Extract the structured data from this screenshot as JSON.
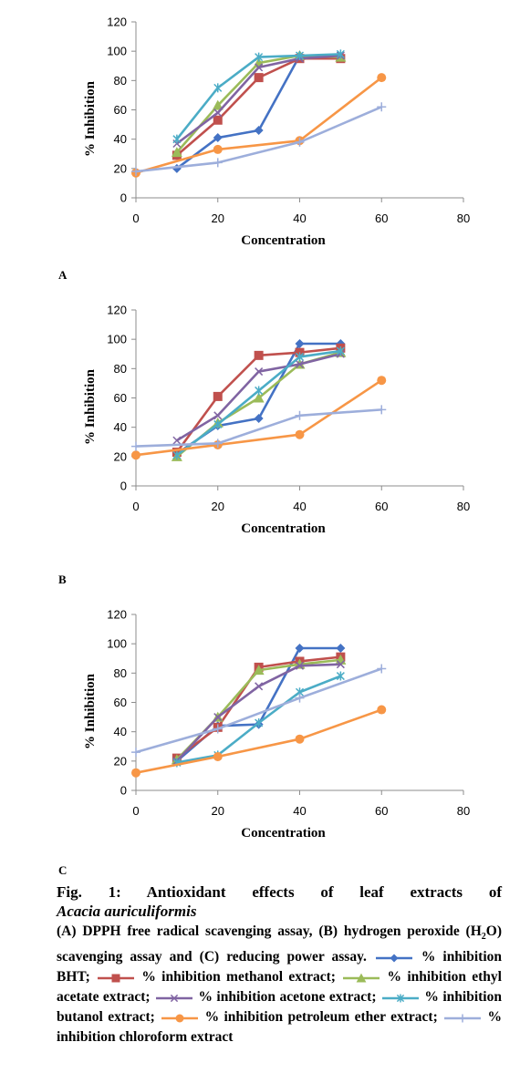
{
  "panel_letters": [
    "A",
    "B",
    "C"
  ],
  "caption": {
    "fig_label": "Fig. 1:",
    "title": "Antioxidant effects of leaf extracts of",
    "species": "Acacia auriculiformis",
    "assays": {
      "a": "(A) DPPH free radical scavenging assay,",
      "b": "(B) hydrogen peroxide (H",
      "sub": "2",
      "b_end": "O",
      "b_end2": ") scavenging assay and",
      "c": "(C) reducing power assay."
    },
    "legend_items": [
      {
        "label": "% inhibition BHT;",
        "color": "#4472C4",
        "marker": "diamond"
      },
      {
        "label": "% inhibition methanol extract;",
        "color": "#C0504D",
        "marker": "square"
      },
      {
        "label": "% inhibition ethyl acetate extract;",
        "color": "#9BBB59",
        "marker": "triangle"
      },
      {
        "label": "% inhibition acetone extract;",
        "color": "#8064A2",
        "marker": "x"
      },
      {
        "label": "% inhibition butanol extract;",
        "color": "#4BACC6",
        "marker": "star"
      },
      {
        "label": "% inhibition petroleum ether extract;",
        "color": "#F79646",
        "marker": "circle"
      },
      {
        "label": "% inhibition chloroform extract",
        "color": "#9DAEDB",
        "marker": "plus"
      }
    ]
  },
  "chart_data": [
    {
      "type": "line",
      "xlabel": "Concentration",
      "ylabel": "% Inhibition",
      "xlim": [
        0,
        80
      ],
      "ylim": [
        0,
        120
      ],
      "xticks": [
        0,
        20,
        40,
        60,
        80
      ],
      "yticks": [
        0,
        20,
        40,
        60,
        80,
        100,
        120
      ],
      "grid": false,
      "series": [
        {
          "name": "% inhibition BHT",
          "color": "#4472C4",
          "marker": "diamond",
          "x": [
            10,
            20,
            30,
            40,
            50
          ],
          "y": [
            20,
            41,
            46,
            97,
            96
          ]
        },
        {
          "name": "% inhibition methanol extract",
          "color": "#C0504D",
          "marker": "square",
          "x": [
            10,
            20,
            30,
            40,
            50
          ],
          "y": [
            29,
            53,
            82,
            95,
            95
          ]
        },
        {
          "name": "% inhibition ethyl acetate extract",
          "color": "#9BBB59",
          "marker": "triangle",
          "x": [
            10,
            20,
            30,
            40,
            50
          ],
          "y": [
            31,
            63,
            92,
            97,
            96
          ]
        },
        {
          "name": "% inhibition acetone extract",
          "color": "#8064A2",
          "marker": "x",
          "x": [
            10,
            20,
            30,
            40,
            50
          ],
          "y": [
            37,
            58,
            89,
            95,
            97
          ]
        },
        {
          "name": "% inhibition butanol extract",
          "color": "#4BACC6",
          "marker": "star",
          "x": [
            10,
            20,
            30,
            40,
            50
          ],
          "y": [
            40,
            75,
            96,
            97,
            98
          ]
        },
        {
          "name": "% inhibition petroleum ether extract",
          "color": "#F79646",
          "marker": "circle",
          "x": [
            0,
            20,
            40,
            60
          ],
          "y": [
            17,
            33,
            39,
            82
          ]
        },
        {
          "name": "% inhibition chloroform extract",
          "color": "#9DAEDB",
          "marker": "plus",
          "x": [
            0,
            20,
            40,
            60
          ],
          "y": [
            18,
            24,
            38,
            62
          ]
        }
      ]
    },
    {
      "type": "line",
      "xlabel": "Concentration",
      "ylabel": "% Inhibition",
      "xlim": [
        0,
        80
      ],
      "ylim": [
        0,
        120
      ],
      "xticks": [
        0,
        20,
        40,
        60,
        80
      ],
      "yticks": [
        0,
        20,
        40,
        60,
        80,
        100,
        120
      ],
      "grid": false,
      "series": [
        {
          "name": "% inhibition BHT",
          "color": "#4472C4",
          "marker": "diamond",
          "x": [
            10,
            20,
            30,
            40,
            50
          ],
          "y": [
            22,
            41,
            46,
            97,
            97
          ]
        },
        {
          "name": "% inhibition methanol extract",
          "color": "#C0504D",
          "marker": "square",
          "x": [
            10,
            20,
            30,
            40,
            50
          ],
          "y": [
            23,
            61,
            89,
            91,
            94
          ]
        },
        {
          "name": "% inhibition ethyl acetate extract",
          "color": "#9BBB59",
          "marker": "triangle",
          "x": [
            10,
            20,
            30,
            40,
            50
          ],
          "y": [
            20,
            43,
            60,
            83,
            91
          ]
        },
        {
          "name": "% inhibition acetone extract",
          "color": "#8064A2",
          "marker": "x",
          "x": [
            10,
            20,
            30,
            40,
            50
          ],
          "y": [
            31,
            48,
            78,
            83,
            90
          ]
        },
        {
          "name": "% inhibition butanol extract",
          "color": "#4BACC6",
          "marker": "star",
          "x": [
            10,
            20,
            30,
            40,
            50
          ],
          "y": [
            21,
            42,
            65,
            88,
            92
          ]
        },
        {
          "name": "% inhibition petroleum ether extract",
          "color": "#F79646",
          "marker": "circle",
          "x": [
            0,
            20,
            40,
            60
          ],
          "y": [
            21,
            28,
            35,
            72
          ]
        },
        {
          "name": "% inhibition chloroform extract",
          "color": "#9DAEDB",
          "marker": "plus",
          "x": [
            0,
            20,
            40,
            60
          ],
          "y": [
            27,
            29,
            48,
            52
          ]
        }
      ]
    },
    {
      "type": "line",
      "xlabel": "Concentration",
      "ylabel": "% Inhibition",
      "xlim": [
        0,
        80
      ],
      "ylim": [
        0,
        120
      ],
      "xticks": [
        0,
        20,
        40,
        60,
        80
      ],
      "yticks": [
        0,
        20,
        40,
        60,
        80,
        100,
        120
      ],
      "grid": false,
      "series": [
        {
          "name": "% inhibition BHT",
          "color": "#4472C4",
          "marker": "diamond",
          "x": [
            10,
            20,
            30,
            40,
            50
          ],
          "y": [
            20,
            44,
            45,
            97,
            97
          ]
        },
        {
          "name": "% inhibition methanol extract",
          "color": "#C0504D",
          "marker": "square",
          "x": [
            10,
            20,
            30,
            40,
            50
          ],
          "y": [
            22,
            43,
            84,
            88,
            91
          ]
        },
        {
          "name": "% inhibition ethyl acetate extract",
          "color": "#9BBB59",
          "marker": "triangle",
          "x": [
            10,
            20,
            30,
            40,
            50
          ],
          "y": [
            21,
            50,
            82,
            86,
            89
          ]
        },
        {
          "name": "% inhibition acetone extract",
          "color": "#8064A2",
          "marker": "x",
          "x": [
            10,
            20,
            30,
            40,
            50
          ],
          "y": [
            20,
            50,
            71,
            85,
            86
          ]
        },
        {
          "name": "% inhibition butanol extract",
          "color": "#4BACC6",
          "marker": "star",
          "x": [
            10,
            20,
            30,
            40,
            50
          ],
          "y": [
            19,
            24,
            46,
            67,
            78
          ]
        },
        {
          "name": "% inhibition petroleum ether extract",
          "color": "#F79646",
          "marker": "circle",
          "x": [
            0,
            20,
            40,
            60
          ],
          "y": [
            12,
            23,
            35,
            55
          ]
        },
        {
          "name": "% inhibition chloroform extract",
          "color": "#9DAEDB",
          "marker": "plus",
          "x": [
            0,
            20,
            40,
            60
          ],
          "y": [
            26,
            42,
            63,
            83
          ]
        }
      ]
    }
  ]
}
